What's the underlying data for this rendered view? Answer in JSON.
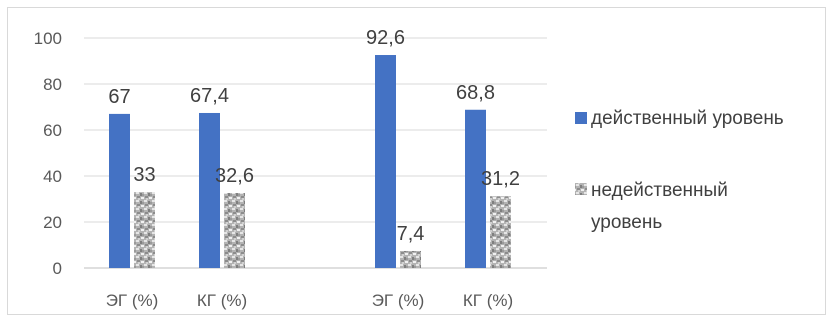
{
  "chart_data": {
    "type": "bar",
    "categories": [
      "ЭГ (%)",
      "КГ (%)",
      "ЭГ (%)",
      "КГ (%)"
    ],
    "series": [
      {
        "name": "действенный уровень",
        "values": [
          67,
          67.4,
          92.6,
          68.8
        ],
        "labels": [
          "67",
          "67,4",
          "92,6",
          "68,8"
        ],
        "color": "#4472c4"
      },
      {
        "name_lines": [
          "недейственный",
          "уровень"
        ],
        "values": [
          33,
          32.6,
          7.4,
          31.2
        ],
        "labels": [
          "33",
          "32,6",
          "7,4",
          "31,2"
        ],
        "color": "#a6a6a6"
      }
    ],
    "ylim": [
      0,
      100
    ],
    "yticks": [
      "0",
      "20",
      "40",
      "60",
      "80",
      "100"
    ],
    "grid": true,
    "legend": "right"
  }
}
